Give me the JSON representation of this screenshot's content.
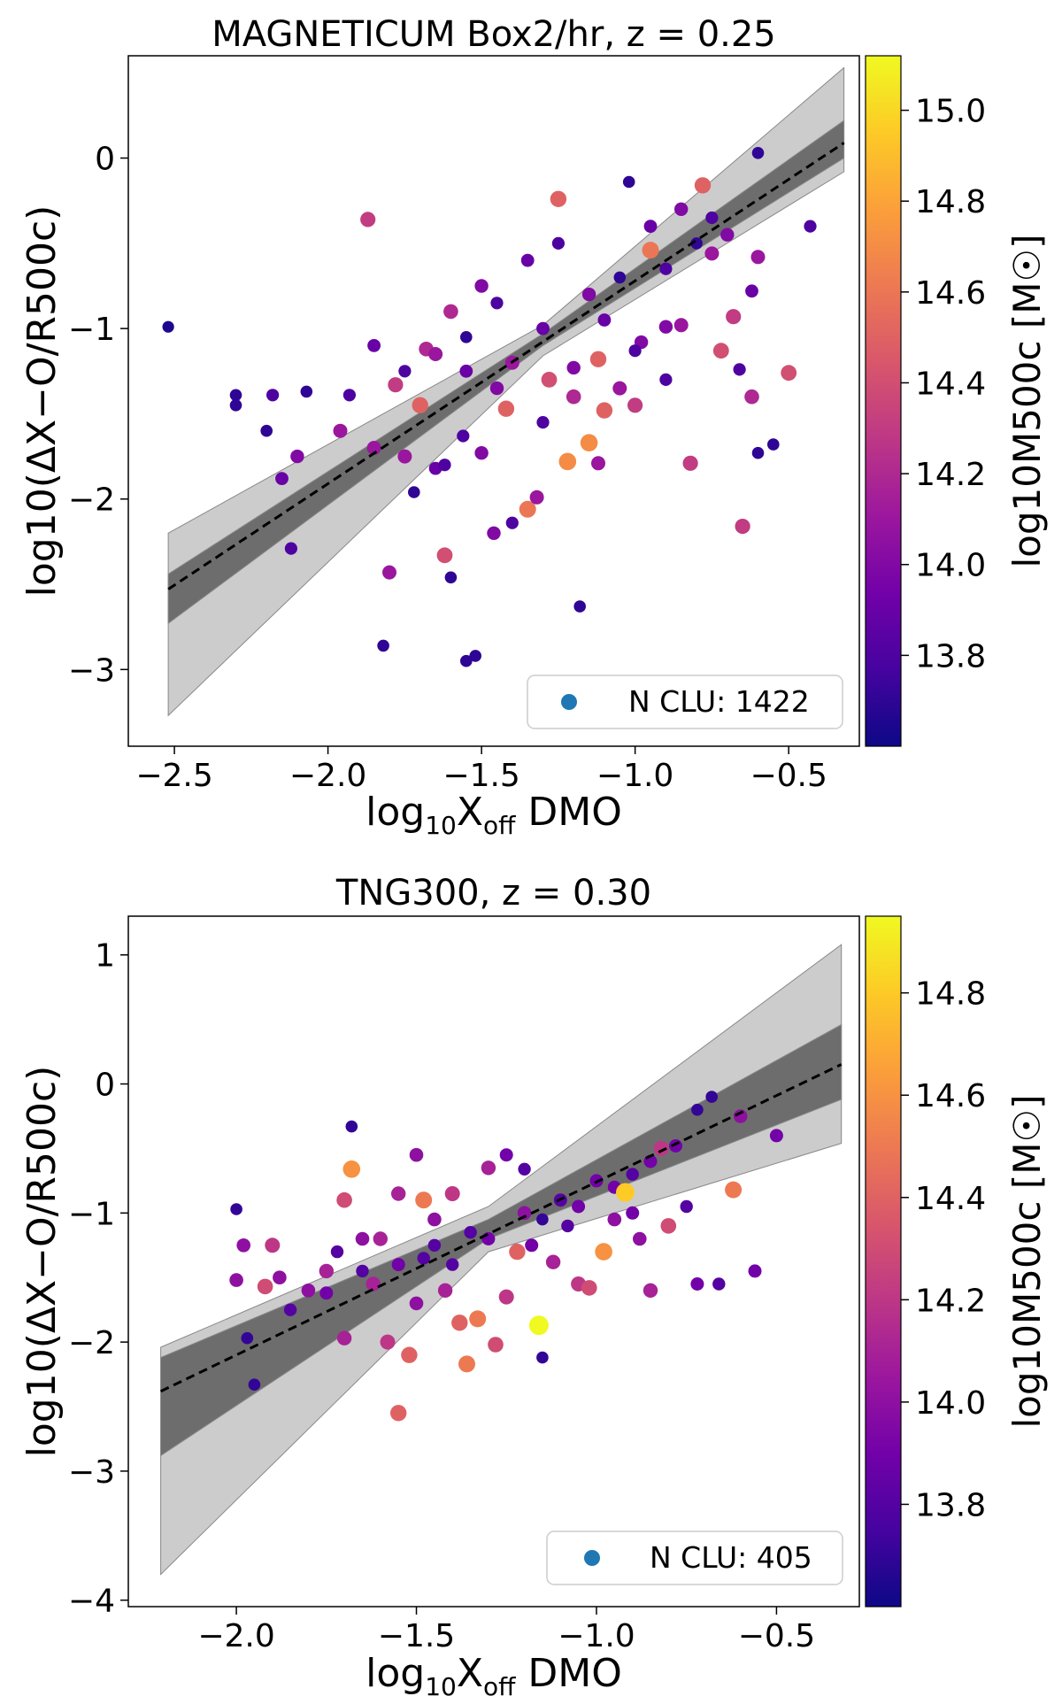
{
  "colormap_stops": [
    "#0d0887",
    "#46039f",
    "#7201a8",
    "#9c179e",
    "#bd3786",
    "#d8576b",
    "#ed7953",
    "#fb9f3a",
    "#fdca26",
    "#f0f921"
  ],
  "band_inner_color": "#555555",
  "band_outer_color": "#bbbbbb",
  "legend_marker_color": "#1f77b4",
  "chart_data": [
    {
      "type": "scatter",
      "title": "MAGNETICUM Box2/hr, z = 0.25",
      "xlabel_main": "log",
      "xlabel_sub": "10",
      "xlabel_rest": "X",
      "xlabel_rest_sub": "off",
      "xlabel_tail": " DMO",
      "ylabel": "log10(ΔX−O/R500c)",
      "colorbar_label": "log10M500c [M☉]",
      "xlim": [
        -2.65,
        -0.27
      ],
      "ylim": [
        -3.45,
        0.6
      ],
      "xticks": [
        -2.5,
        -2.0,
        -1.5,
        -1.0,
        -0.5
      ],
      "xtick_labels": [
        "−2.5",
        "−2.0",
        "−1.5",
        "−1.0",
        "−0.5"
      ],
      "yticks": [
        -3,
        -2,
        -1,
        0
      ],
      "ytick_labels": [
        "−3",
        "−2",
        "−1",
        "0"
      ],
      "clim": [
        13.6,
        15.12
      ],
      "cticks": [
        13.8,
        14.0,
        14.2,
        14.4,
        14.6,
        14.8,
        15.0
      ],
      "ctick_labels": [
        "13.8",
        "14.0",
        "14.2",
        "14.4",
        "14.6",
        "14.8",
        "15.0"
      ],
      "legend": "N CLU: 1422",
      "n_clusters": 1422,
      "fit": {
        "slope": 1.19,
        "intercept": 0.47,
        "x_range": [
          -2.52,
          -0.32
        ]
      },
      "inner_band": {
        "x": [
          -2.52,
          -1.3,
          -0.32
        ],
        "low": [
          -2.73,
          -1.1,
          0.0
        ],
        "high": [
          -2.44,
          -1.03,
          0.22
        ]
      },
      "outer_band": {
        "x": [
          -2.52,
          -1.3,
          -0.32
        ],
        "low": [
          -3.27,
          -1.16,
          -0.08
        ],
        "high": [
          -2.2,
          -0.98,
          0.53
        ]
      },
      "points": [
        [
          -2.52,
          -0.99,
          13.65
        ],
        [
          -2.3,
          -1.39,
          13.7
        ],
        [
          -2.3,
          -1.45,
          13.7
        ],
        [
          -2.2,
          -1.6,
          13.7
        ],
        [
          -2.18,
          -1.39,
          13.8
        ],
        [
          -2.12,
          -2.29,
          13.8
        ],
        [
          -2.15,
          -1.88,
          13.9
        ],
        [
          -2.1,
          -1.75,
          14.0
        ],
        [
          -2.07,
          -1.37,
          13.7
        ],
        [
          -1.96,
          -1.6,
          14.1
        ],
        [
          -1.93,
          -1.39,
          13.8
        ],
        [
          -1.87,
          -0.36,
          14.3
        ],
        [
          -1.85,
          -1.7,
          14.1
        ],
        [
          -1.82,
          -2.86,
          13.7
        ],
        [
          -1.8,
          -2.43,
          14.1
        ],
        [
          -1.78,
          -1.33,
          14.3
        ],
        [
          -1.75,
          -1.75,
          14.1
        ],
        [
          -1.72,
          -1.96,
          13.7
        ],
        [
          -1.7,
          -1.45,
          14.5
        ],
        [
          -1.68,
          -1.12,
          14.2
        ],
        [
          -1.65,
          -1.82,
          13.9
        ],
        [
          -1.62,
          -2.33,
          14.4
        ],
        [
          -1.62,
          -1.8,
          13.8
        ],
        [
          -1.6,
          -2.46,
          13.7
        ],
        [
          -1.56,
          -1.63,
          13.8
        ],
        [
          -1.55,
          -2.95,
          13.7
        ],
        [
          -1.52,
          -2.92,
          13.7
        ],
        [
          -1.5,
          -1.73,
          14.0
        ],
        [
          -1.46,
          -2.2,
          14.0
        ],
        [
          -1.42,
          -1.47,
          14.5
        ],
        [
          -1.4,
          -2.14,
          13.8
        ],
        [
          -1.35,
          -2.06,
          14.6
        ],
        [
          -1.32,
          -1.99,
          14.1
        ],
        [
          -1.25,
          -0.24,
          14.5
        ],
        [
          -1.22,
          -1.78,
          14.7
        ],
        [
          -1.18,
          -2.63,
          13.7
        ],
        [
          -1.15,
          -1.67,
          14.7
        ],
        [
          -1.12,
          -1.79,
          14.1
        ],
        [
          -1.1,
          -1.48,
          14.5
        ],
        [
          -1.05,
          -1.35,
          14.1
        ],
        [
          -1.02,
          -0.14,
          13.7
        ],
        [
          -0.98,
          -1.08,
          14.0
        ],
        [
          -0.95,
          -0.54,
          14.6
        ],
        [
          -0.9,
          -0.99,
          14.0
        ],
        [
          -0.85,
          -0.98,
          14.1
        ],
        [
          -0.82,
          -1.79,
          14.3
        ],
        [
          -0.78,
          -0.16,
          14.5
        ],
        [
          -0.75,
          -0.56,
          14.1
        ],
        [
          -0.72,
          -1.13,
          14.4
        ],
        [
          -0.65,
          -2.16,
          14.3
        ],
        [
          -0.62,
          -1.4,
          14.2
        ],
        [
          -0.6,
          0.03,
          13.7
        ],
        [
          -0.6,
          -1.73,
          13.7
        ],
        [
          -0.55,
          -1.68,
          13.7
        ],
        [
          -0.5,
          -1.26,
          14.4
        ],
        [
          -0.43,
          -0.4,
          13.8
        ],
        [
          -0.6,
          -0.58,
          14.1
        ],
        [
          -0.62,
          -0.78,
          13.9
        ],
        [
          -0.66,
          -1.24,
          13.8
        ],
        [
          -0.68,
          -0.93,
          14.3
        ],
        [
          -1.0,
          -1.13,
          13.8
        ],
        [
          -1.2,
          -1.23,
          14.0
        ],
        [
          -1.3,
          -1.0,
          13.9
        ],
        [
          -1.4,
          -1.2,
          14.1
        ],
        [
          -1.45,
          -0.85,
          13.8
        ],
        [
          -1.5,
          -0.75,
          14.0
        ],
        [
          -1.55,
          -1.05,
          13.7
        ],
        [
          -1.6,
          -0.9,
          14.2
        ],
        [
          -1.35,
          -0.6,
          13.9
        ],
        [
          -1.25,
          -0.5,
          13.8
        ],
        [
          -1.15,
          -0.8,
          14.0
        ],
        [
          -1.05,
          -0.7,
          13.7
        ],
        [
          -0.95,
          -0.4,
          13.9
        ],
        [
          -0.9,
          -0.65,
          13.8
        ],
        [
          -0.85,
          -0.3,
          14.0
        ],
        [
          -0.8,
          -0.5,
          13.7
        ],
        [
          -0.75,
          -0.35,
          13.8
        ],
        [
          -0.7,
          -0.45,
          14.0
        ],
        [
          -1.1,
          -0.95,
          13.9
        ],
        [
          -1.2,
          -1.4,
          14.2
        ],
        [
          -1.3,
          -1.55,
          13.8
        ],
        [
          -1.45,
          -1.35,
          14.0
        ],
        [
          -1.55,
          -1.25,
          13.9
        ],
        [
          -1.65,
          -1.15,
          14.1
        ],
        [
          -1.75,
          -1.25,
          13.8
        ],
        [
          -1.85,
          -1.1,
          13.9
        ],
        [
          -1.0,
          -1.45,
          14.3
        ],
        [
          -0.9,
          -1.3,
          13.8
        ],
        [
          -1.12,
          -1.18,
          14.5
        ],
        [
          -1.28,
          -1.3,
          14.4
        ]
      ]
    },
    {
      "type": "scatter",
      "title": "TNG300, z = 0.30",
      "xlabel_main": "log",
      "xlabel_sub": "10",
      "xlabel_rest": "X",
      "xlabel_rest_sub": "off",
      "xlabel_tail": " DMO",
      "ylabel": "log10(ΔX−O/R500c)",
      "colorbar_label": "log10M500c [M☉]",
      "xlim": [
        -2.3,
        -0.27
      ],
      "ylim": [
        -4.05,
        1.3
      ],
      "xticks": [
        -2.0,
        -1.5,
        -1.0,
        -0.5
      ],
      "xtick_labels": [
        "−2.0",
        "−1.5",
        "−1.0",
        "−0.5"
      ],
      "yticks": [
        -4,
        -3,
        -2,
        -1,
        0,
        1
      ],
      "ytick_labels": [
        "−4",
        "−3",
        "−2",
        "−1",
        "0",
        "1"
      ],
      "clim": [
        13.6,
        14.95
      ],
      "cticks": [
        13.8,
        14.0,
        14.2,
        14.4,
        14.6,
        14.8
      ],
      "ctick_labels": [
        "13.8",
        "14.0",
        "14.2",
        "14.4",
        "14.6",
        "14.8"
      ],
      "legend": "N CLU: 405",
      "n_clusters": 405,
      "fit": {
        "slope": 1.34,
        "intercept": 0.58,
        "x_range": [
          -2.21,
          -0.32
        ]
      },
      "inner_band": {
        "x": [
          -2.21,
          -1.3,
          -0.32
        ],
        "low": [
          -2.88,
          -1.2,
          -0.12
        ],
        "high": [
          -2.12,
          -1.05,
          0.46
        ]
      },
      "outer_band": {
        "x": [
          -2.21,
          -1.3,
          -0.32
        ],
        "low": [
          -3.8,
          -1.3,
          -0.46
        ],
        "high": [
          -2.04,
          -0.95,
          1.08
        ]
      },
      "points": [
        [
          -1.95,
          -2.33,
          13.7
        ],
        [
          -1.97,
          -1.97,
          13.7
        ],
        [
          -2.0,
          -0.97,
          13.7
        ],
        [
          -2.0,
          -1.52,
          14.0
        ],
        [
          -1.98,
          -1.25,
          14.0
        ],
        [
          -1.92,
          -1.57,
          14.3
        ],
        [
          -1.9,
          -1.25,
          14.2
        ],
        [
          -1.88,
          -1.5,
          14.0
        ],
        [
          -1.8,
          -1.6,
          14.0
        ],
        [
          -1.75,
          -1.45,
          14.1
        ],
        [
          -1.72,
          -1.3,
          13.8
        ],
        [
          -1.7,
          -1.97,
          14.1
        ],
        [
          -1.68,
          -0.66,
          14.6
        ],
        [
          -1.68,
          -0.33,
          13.7
        ],
        [
          -1.65,
          -1.2,
          14.0
        ],
        [
          -1.62,
          -1.55,
          14.1
        ],
        [
          -1.58,
          -2.0,
          14.2
        ],
        [
          -1.55,
          -0.85,
          14.1
        ],
        [
          -1.55,
          -2.55,
          14.4
        ],
        [
          -1.52,
          -2.1,
          14.4
        ],
        [
          -1.5,
          -1.7,
          14.0
        ],
        [
          -1.48,
          -1.35,
          13.8
        ],
        [
          -1.45,
          -1.25,
          13.8
        ],
        [
          -1.42,
          -1.6,
          14.1
        ],
        [
          -1.38,
          -1.85,
          14.4
        ],
        [
          -1.36,
          -2.17,
          14.5
        ],
        [
          -1.33,
          -1.82,
          14.5
        ],
        [
          -1.3,
          -1.2,
          13.9
        ],
        [
          -1.28,
          -2.02,
          14.3
        ],
        [
          -1.25,
          -1.65,
          14.2
        ],
        [
          -1.22,
          -1.3,
          14.4
        ],
        [
          -1.2,
          -0.66,
          13.8
        ],
        [
          -1.18,
          -1.25,
          13.9
        ],
        [
          -1.16,
          -1.87,
          14.95
        ],
        [
          -1.15,
          -2.12,
          13.7
        ],
        [
          -1.12,
          -1.38,
          14.1
        ],
        [
          -1.1,
          -0.9,
          13.9
        ],
        [
          -1.08,
          -1.1,
          13.8
        ],
        [
          -1.05,
          -1.55,
          14.2
        ],
        [
          -1.02,
          -1.58,
          14.3
        ],
        [
          -0.98,
          -1.3,
          14.6
        ],
        [
          -0.95,
          -0.8,
          13.9
        ],
        [
          -0.92,
          -0.84,
          14.8
        ],
        [
          -0.9,
          -1.0,
          13.9
        ],
        [
          -0.88,
          -1.2,
          14.0
        ],
        [
          -0.85,
          -1.6,
          14.1
        ],
        [
          -0.82,
          -0.5,
          14.2
        ],
        [
          -0.8,
          -1.1,
          14.3
        ],
        [
          -0.78,
          -0.48,
          13.9
        ],
        [
          -0.75,
          -0.95,
          13.8
        ],
        [
          -0.72,
          -1.55,
          13.9
        ],
        [
          -0.68,
          -0.1,
          13.7
        ],
        [
          -0.66,
          -1.55,
          13.8
        ],
        [
          -0.62,
          -0.82,
          14.5
        ],
        [
          -0.6,
          -0.25,
          14.0
        ],
        [
          -0.56,
          -1.45,
          13.9
        ],
        [
          -0.5,
          -0.4,
          13.9
        ],
        [
          -0.72,
          -0.2,
          13.7
        ],
        [
          -1.4,
          -0.85,
          14.2
        ],
        [
          -1.3,
          -0.65,
          14.1
        ],
        [
          -1.25,
          -0.55,
          13.9
        ],
        [
          -1.1,
          -0.9,
          13.8
        ],
        [
          -1.0,
          -0.75,
          13.9
        ],
        [
          -0.95,
          -1.05,
          14.0
        ],
        [
          -1.15,
          -1.05,
          13.7
        ],
        [
          -1.35,
          -1.15,
          13.8
        ],
        [
          -1.45,
          -1.05,
          14.0
        ],
        [
          -1.55,
          -1.4,
          13.9
        ],
        [
          -1.65,
          -1.45,
          13.8
        ],
        [
          -1.75,
          -1.62,
          13.9
        ],
        [
          -1.85,
          -1.75,
          13.8
        ],
        [
          -1.2,
          -1.0,
          14.0
        ],
        [
          -1.05,
          -0.95,
          13.9
        ],
        [
          -0.9,
          -0.7,
          13.8
        ],
        [
          -0.85,
          -0.6,
          13.9
        ],
        [
          -1.6,
          -1.2,
          14.1
        ],
        [
          -1.4,
          -1.4,
          13.8
        ],
        [
          -1.5,
          -0.55,
          14.0
        ],
        [
          -1.48,
          -0.9,
          14.5
        ],
        [
          -1.7,
          -0.9,
          14.3
        ]
      ]
    }
  ]
}
